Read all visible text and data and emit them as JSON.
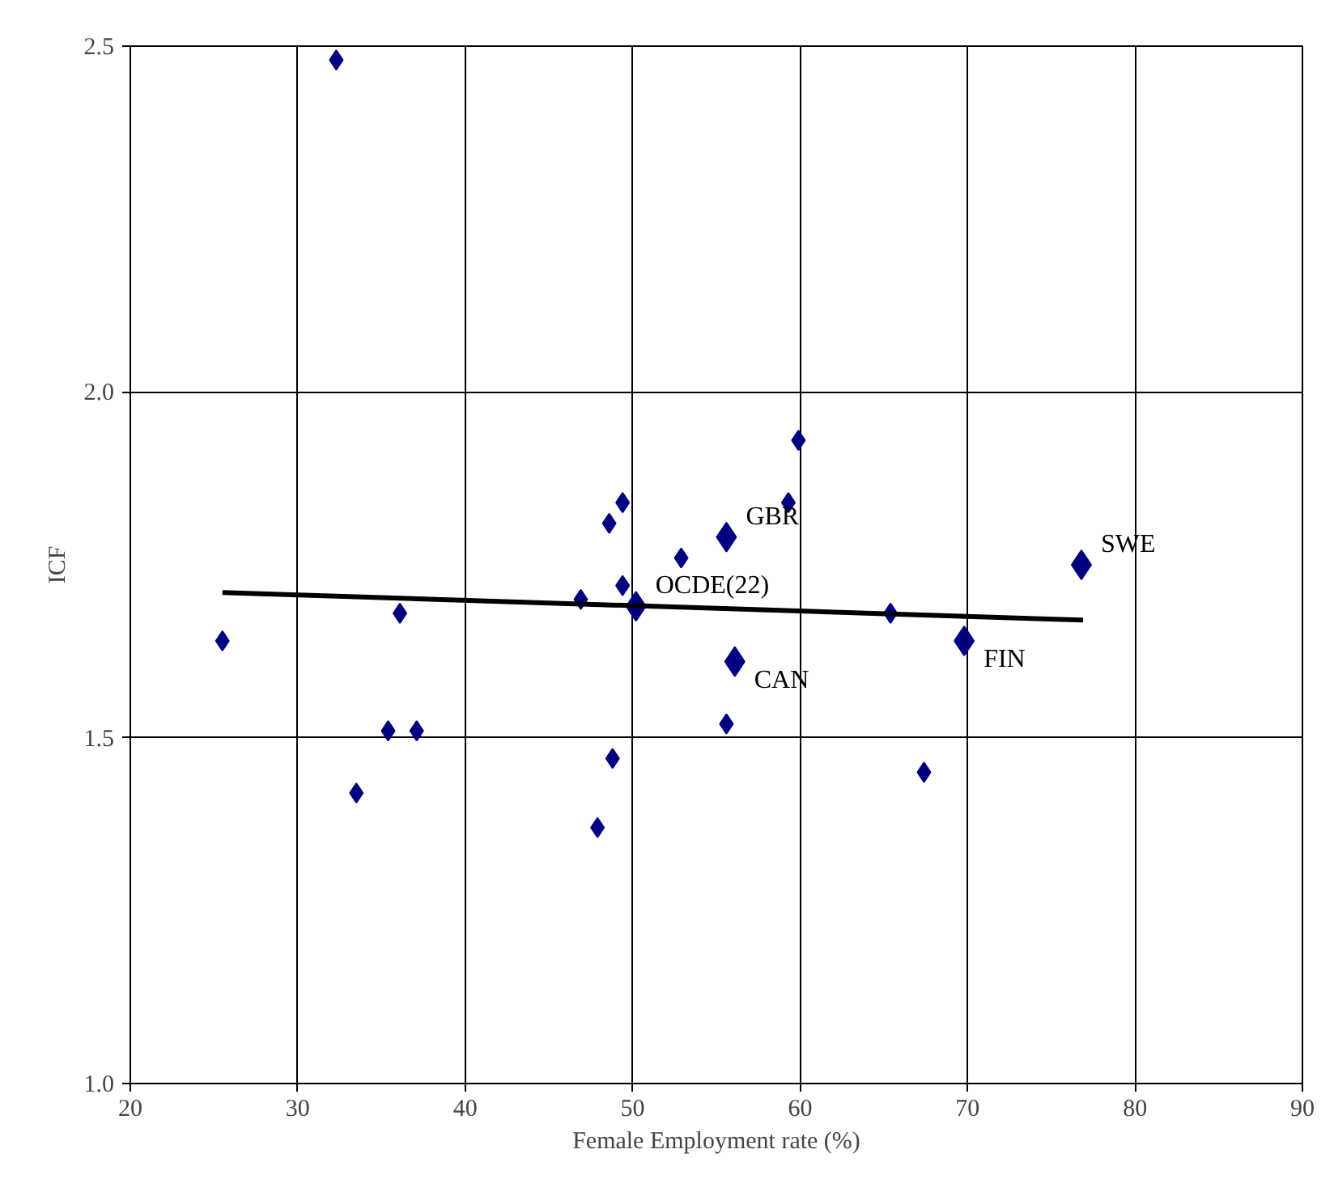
{
  "chart_data": {
    "type": "scatter",
    "xlabel": "Female Employment rate (%)",
    "ylabel": "ICF",
    "xlim": [
      20,
      90
    ],
    "xticks": [
      20,
      30,
      40,
      50,
      60,
      70,
      80,
      90
    ],
    "ylim": [
      1.0,
      2.5
    ],
    "yticks": [
      {
        "value": 1.0,
        "label": "1.0"
      },
      {
        "value": 1.5,
        "label": "1.5"
      },
      {
        "value": 2.0,
        "label": "2.0"
      },
      {
        "value": 2.5,
        "label": "2.5"
      }
    ],
    "grid": true,
    "series": [
      {
        "type": "scatter",
        "marker": "diamond",
        "color": "#000080",
        "x": [
          25.5,
          32.3,
          36.1,
          35.4,
          37.1,
          33.5,
          46.9,
          48.6,
          49.4,
          49.4,
          48.8,
          47.9,
          52.9,
          55.6,
          59.9,
          59.3,
          65.4,
          67.4
        ],
        "values": [
          1.64,
          2.48,
          1.68,
          1.51,
          1.51,
          1.42,
          1.7,
          1.81,
          1.84,
          1.72,
          1.47,
          1.37,
          1.76,
          1.52,
          1.93,
          1.84,
          1.68,
          1.45
        ]
      },
      {
        "type": "scatter",
        "marker": "diamond",
        "color": "#000080",
        "x": [
          55.6,
          50.2,
          56.1,
          69.8,
          76.8
        ],
        "values": [
          1.79,
          1.69,
          1.61,
          1.64,
          1.75
        ]
      },
      {
        "type": "line",
        "color": "#000000",
        "x": [
          25.5,
          76.9
        ],
        "values": [
          1.71,
          1.67
        ]
      }
    ],
    "annotations": [
      {
        "text": "GBR",
        "x": 55.6,
        "y": 1.79
      },
      {
        "text": "OCDE(22)",
        "x": 50.2,
        "y": 1.69
      },
      {
        "text": "CAN",
        "x": 56.1,
        "y": 1.61
      },
      {
        "text": "FIN",
        "x": 69.8,
        "y": 1.64
      },
      {
        "text": "SWE",
        "x": 76.8,
        "y": 1.75
      }
    ]
  }
}
